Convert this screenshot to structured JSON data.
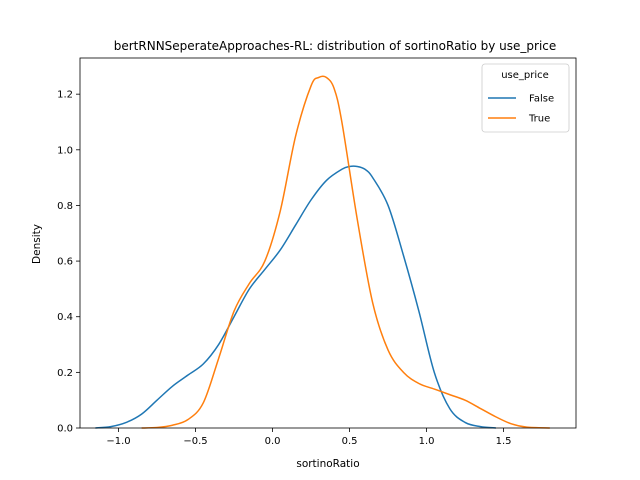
{
  "chart_data": {
    "type": "line",
    "title": "bertRNNSeperateApproaches-RL: distribution of sortinoRatio by use_price",
    "xlabel": "sortinoRatio",
    "ylabel": "Density",
    "xlim": [
      -1.25,
      1.97
    ],
    "ylim": [
      0,
      1.33
    ],
    "xticks": [
      -1.0,
      -0.5,
      0.0,
      0.5,
      1.0,
      1.5
    ],
    "xtick_labels": [
      "−1.0",
      "−0.5",
      "0.0",
      "0.5",
      "1.0",
      "1.5"
    ],
    "yticks": [
      0.0,
      0.2,
      0.4,
      0.6,
      0.8,
      1.0,
      1.2
    ],
    "ytick_labels": [
      "0.0",
      "0.2",
      "0.4",
      "0.6",
      "0.8",
      "1.0",
      "1.2"
    ],
    "grid": false,
    "legend": {
      "title": "use_price",
      "placement": "top-right"
    },
    "series": [
      {
        "name": "False",
        "color": "#1f77b4",
        "x": [
          -1.15,
          -1.05,
          -0.95,
          -0.85,
          -0.75,
          -0.65,
          -0.55,
          -0.45,
          -0.35,
          -0.25,
          -0.15,
          -0.05,
          0.05,
          0.15,
          0.25,
          0.35,
          0.45,
          0.5,
          0.55,
          0.6,
          0.65,
          0.75,
          0.85,
          0.95,
          1.05,
          1.15,
          1.25,
          1.35,
          1.45
        ],
        "y": [
          0.0,
          0.005,
          0.02,
          0.05,
          0.1,
          0.15,
          0.19,
          0.23,
          0.3,
          0.4,
          0.5,
          0.57,
          0.64,
          0.73,
          0.82,
          0.89,
          0.93,
          0.94,
          0.94,
          0.93,
          0.9,
          0.8,
          0.62,
          0.42,
          0.2,
          0.07,
          0.02,
          0.005,
          0.0
        ]
      },
      {
        "name": "True",
        "color": "#ff7f0e",
        "x": [
          -0.85,
          -0.75,
          -0.65,
          -0.55,
          -0.45,
          -0.35,
          -0.25,
          -0.15,
          -0.05,
          0.05,
          0.15,
          0.25,
          0.3,
          0.35,
          0.4,
          0.45,
          0.55,
          0.65,
          0.75,
          0.85,
          0.95,
          1.05,
          1.15,
          1.25,
          1.35,
          1.45,
          1.55,
          1.65,
          1.8
        ],
        "y": [
          0.0,
          0.002,
          0.01,
          0.03,
          0.09,
          0.25,
          0.42,
          0.52,
          0.6,
          0.78,
          1.05,
          1.23,
          1.26,
          1.26,
          1.22,
          1.1,
          0.75,
          0.45,
          0.28,
          0.2,
          0.16,
          0.14,
          0.12,
          0.1,
          0.07,
          0.04,
          0.015,
          0.003,
          0.0
        ]
      }
    ]
  }
}
